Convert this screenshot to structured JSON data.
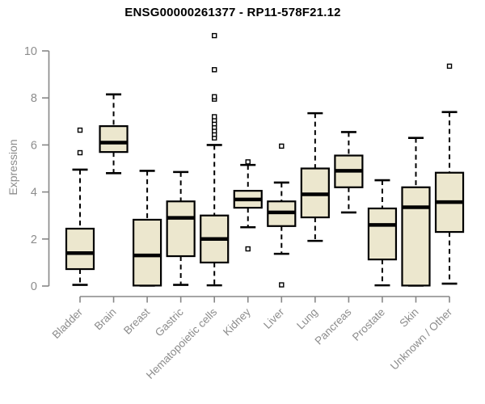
{
  "title": "ENSG00000261377 - RP11-578F21.12",
  "colors": {
    "background": "#ffffff",
    "box_fill": "#ECE7CE",
    "box_stroke": "#000000",
    "median": "#000000",
    "whisker": "#000000",
    "outlier_fill": "#ffffff",
    "axis": "#878787",
    "label": "#8c8c8c",
    "title": "#000000"
  },
  "chart_data": {
    "type": "boxplot",
    "title": "ENSG00000261377 - RP11-578F21.12",
    "xlabel": "",
    "ylabel": "Expression",
    "ylim": [
      0,
      10.9
    ],
    "yticks": [
      0,
      2,
      4,
      6,
      8,
      10
    ],
    "grid": false,
    "legend": "none",
    "categories": [
      "Bladder",
      "Brain",
      "Breast",
      "Gastric",
      "Hematopoietic cells",
      "Kidney",
      "Liver",
      "Lung",
      "Pancreas",
      "Prostate",
      "Skin",
      "Unknown / Other"
    ],
    "series": [
      {
        "name": "Bladder",
        "low": 0.05,
        "q1": 0.72,
        "median": 1.4,
        "q3": 2.44,
        "high": 4.95,
        "outliers": [
          5.67,
          6.63
        ]
      },
      {
        "name": "Brain",
        "low": 4.8,
        "q1": 5.7,
        "median": 6.1,
        "q3": 6.8,
        "high": 8.15,
        "outliers": []
      },
      {
        "name": "Breast",
        "low": 0.02,
        "q1": 0.02,
        "median": 1.3,
        "q3": 2.82,
        "high": 4.9,
        "outliers": []
      },
      {
        "name": "Gastric",
        "low": 0.05,
        "q1": 1.27,
        "median": 2.9,
        "q3": 3.6,
        "high": 4.85,
        "outliers": []
      },
      {
        "name": "Hematopoietic cells",
        "low": 0.03,
        "q1": 1.0,
        "median": 2.0,
        "q3": 3.0,
        "high": 6.0,
        "outliers": [
          6.3,
          6.45,
          6.6,
          6.75,
          6.9,
          7.05,
          7.2,
          7.95,
          8.05,
          9.2,
          10.65
        ]
      },
      {
        "name": "Kidney",
        "low": 2.5,
        "q1": 3.33,
        "median": 3.68,
        "q3": 4.05,
        "high": 5.15,
        "outliers": [
          5.28,
          1.58
        ]
      },
      {
        "name": "Liver",
        "low": 1.37,
        "q1": 2.55,
        "median": 3.13,
        "q3": 3.6,
        "high": 4.4,
        "outliers": [
          5.95,
          0.05
        ]
      },
      {
        "name": "Lung",
        "low": 1.92,
        "q1": 2.92,
        "median": 3.9,
        "q3": 5.0,
        "high": 7.35,
        "outliers": []
      },
      {
        "name": "Pancreas",
        "low": 3.13,
        "q1": 4.2,
        "median": 4.9,
        "q3": 5.55,
        "high": 6.55,
        "outliers": []
      },
      {
        "name": "Prostate",
        "low": 0.03,
        "q1": 1.13,
        "median": 2.6,
        "q3": 3.3,
        "high": 4.5,
        "outliers": []
      },
      {
        "name": "Skin",
        "low": 0.02,
        "q1": 0.02,
        "median": 3.35,
        "q3": 4.2,
        "high": 6.3,
        "outliers": []
      },
      {
        "name": "Unknown / Other",
        "low": 0.1,
        "q1": 2.3,
        "median": 3.57,
        "q3": 4.82,
        "high": 7.4,
        "outliers": [
          9.35
        ]
      }
    ]
  }
}
